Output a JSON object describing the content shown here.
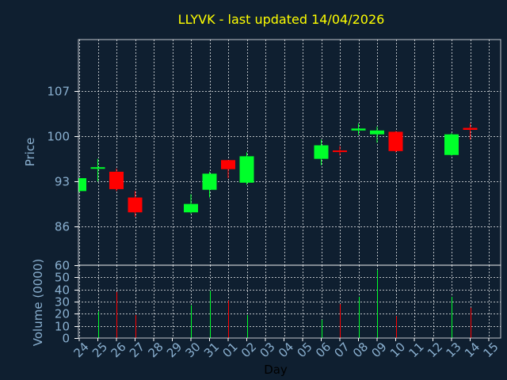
{
  "chart_data": [
    {
      "type": "candlestick",
      "title": "LLYVK - last updated 14/04/2026",
      "ylabel": "Price",
      "ylim": [
        80,
        115
      ],
      "yticks": [
        86,
        93,
        100,
        107
      ],
      "grid": true,
      "colors": {
        "up": "#00ff2a",
        "down": "#ff0000",
        "title": "#ffff00",
        "axis_text": "#8ab0d0",
        "background": "#0f1f30",
        "frame": "#ffffff",
        "grid": "#ffffff"
      },
      "candles": [
        {
          "day": "24",
          "open": 91.5,
          "high": 93.5,
          "low": 91.3,
          "close": 93.5
        },
        {
          "day": "25",
          "open": 95.0,
          "high": 96.5,
          "low": 93.0,
          "close": 95.2
        },
        {
          "day": "26",
          "open": 94.5,
          "high": 95.0,
          "low": 91.5,
          "close": 91.8
        },
        {
          "day": "27",
          "open": 90.5,
          "high": 91.5,
          "low": 87.5,
          "close": 88.2
        },
        {
          "day": "30",
          "open": 88.2,
          "high": 91.0,
          "low": 88.0,
          "close": 89.5
        },
        {
          "day": "31",
          "open": 91.7,
          "high": 94.5,
          "low": 90.5,
          "close": 94.2
        },
        {
          "day": "01",
          "open": 96.3,
          "high": 96.3,
          "low": 93.5,
          "close": 94.9
        },
        {
          "day": "02",
          "open": 92.8,
          "high": 97.5,
          "low": 92.5,
          "close": 96.9
        },
        {
          "day": "06",
          "open": 96.5,
          "high": 99.5,
          "low": 95.5,
          "close": 98.6
        },
        {
          "day": "07",
          "open": 97.8,
          "high": 98.5,
          "low": 97.0,
          "close": 97.6
        },
        {
          "day": "08",
          "open": 100.9,
          "high": 102.0,
          "low": 100.2,
          "close": 101.2
        },
        {
          "day": "09",
          "open": 100.3,
          "high": 101.5,
          "low": 99.0,
          "close": 100.9
        },
        {
          "day": "10",
          "open": 100.7,
          "high": 100.8,
          "low": 97.5,
          "close": 97.7
        },
        {
          "day": "13",
          "open": 97.1,
          "high": 100.5,
          "low": 97.0,
          "close": 100.3
        },
        {
          "day": "14",
          "open": 101.3,
          "high": 102.0,
          "low": 99.5,
          "close": 101.0
        }
      ]
    },
    {
      "type": "bar",
      "ylabel": "Volume (0000)",
      "xlabel": "Day",
      "ylim": [
        0,
        60
      ],
      "yticks": [
        0,
        10,
        20,
        30,
        40,
        50,
        60
      ],
      "grid": true,
      "categories": [
        "24",
        "25",
        "26",
        "27",
        "28",
        "29",
        "30",
        "31",
        "01",
        "02",
        "03",
        "04",
        "05",
        "06",
        "07",
        "08",
        "09",
        "10",
        "11",
        "12",
        "13",
        "14",
        "15"
      ],
      "volumes": [
        {
          "day": "25",
          "value": 22,
          "direction": "up"
        },
        {
          "day": "26",
          "value": 38,
          "direction": "down"
        },
        {
          "day": "27",
          "value": 19,
          "direction": "down"
        },
        {
          "day": "30",
          "value": 27,
          "direction": "up"
        },
        {
          "day": "31",
          "value": 39,
          "direction": "up"
        },
        {
          "day": "01",
          "value": 31,
          "direction": "down"
        },
        {
          "day": "02",
          "value": 19,
          "direction": "up"
        },
        {
          "day": "06",
          "value": 15,
          "direction": "up"
        },
        {
          "day": "07",
          "value": 28,
          "direction": "down"
        },
        {
          "day": "08",
          "value": 34,
          "direction": "up"
        },
        {
          "day": "09",
          "value": 56,
          "direction": "up"
        },
        {
          "day": "10",
          "value": 18,
          "direction": "down"
        },
        {
          "day": "13",
          "value": 34,
          "direction": "up"
        },
        {
          "day": "14",
          "value": 25,
          "direction": "down"
        }
      ]
    }
  ]
}
